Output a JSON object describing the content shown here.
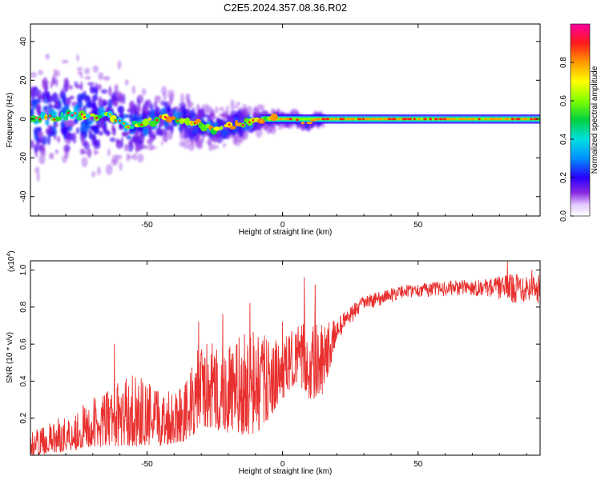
{
  "figure_title": "C2E5.2024.357.08.36.R02",
  "colors": {
    "snr_line": "#e8302e",
    "axis": "#000000"
  },
  "chart_data": [
    {
      "type": "heatmap",
      "xlabel": "Height of straight line (km)",
      "ylabel": "Frequency (Hz)",
      "xlim": [
        -93,
        95
      ],
      "ylim": [
        -50,
        49
      ],
      "xticks": [
        -50,
        0,
        50
      ],
      "yticks": [
        -40,
        -20,
        0,
        20,
        40
      ],
      "colorbar": {
        "label": "Normalized spectral amplitude",
        "range": [
          0,
          1
        ],
        "ticks": [
          "0.0",
          "0.2",
          "0.4",
          "0.6",
          "0.8"
        ]
      },
      "ridge": [
        {
          "x": -93,
          "y": 0
        },
        {
          "x": -85,
          "y": 1
        },
        {
          "x": -78,
          "y": 2
        },
        {
          "x": -72,
          "y": 1
        },
        {
          "x": -65,
          "y": 2
        },
        {
          "x": -60,
          "y": 0
        },
        {
          "x": -57,
          "y": -3
        },
        {
          "x": -54,
          "y": -3
        },
        {
          "x": -50,
          "y": -2
        },
        {
          "x": -46,
          "y": 0
        },
        {
          "x": -42,
          "y": 1
        },
        {
          "x": -38,
          "y": 0
        },
        {
          "x": -34,
          "y": -2
        },
        {
          "x": -30,
          "y": -3
        },
        {
          "x": -25,
          "y": -5
        },
        {
          "x": -22,
          "y": -5
        },
        {
          "x": -18,
          "y": -3
        },
        {
          "x": -14,
          "y": -2
        },
        {
          "x": -10,
          "y": -1
        },
        {
          "x": -6,
          "y": -1
        },
        {
          "x": -3,
          "y": 0
        },
        {
          "x": 0,
          "y": 0
        },
        {
          "x": 5,
          "y": 0
        },
        {
          "x": 7,
          "y": -2
        },
        {
          "x": 10,
          "y": -2
        },
        {
          "x": 12,
          "y": 0
        },
        {
          "x": 20,
          "y": 0
        },
        {
          "x": 40,
          "y": 0
        },
        {
          "x": 60,
          "y": 0
        },
        {
          "x": 80,
          "y": 0
        },
        {
          "x": 95,
          "y": 0
        }
      ],
      "spread_hz": [
        {
          "x": -93,
          "spread": 12
        },
        {
          "x": -70,
          "spread": 12
        },
        {
          "x": -55,
          "spread": 9
        },
        {
          "x": -45,
          "spread": 6
        },
        {
          "x": -30,
          "spread": 5
        },
        {
          "x": -15,
          "spread": 4
        },
        {
          "x": -8,
          "spread": 3
        },
        {
          "x": 0,
          "spread": 1.5
        },
        {
          "x": 95,
          "spread": 1.2
        }
      ]
    },
    {
      "type": "line",
      "xlabel": "Height of straight line (km)",
      "ylabel": "SNR (10 * v/v)",
      "y_multiplier": "(x10",
      "y_multiplier_exp": "4",
      "xlim": [
        -93,
        95
      ],
      "ylim": [
        0,
        1.05
      ],
      "xticks": [
        -50,
        0,
        50
      ],
      "yticks": [
        "0.2",
        "0.4",
        "0.6",
        "0.8",
        "1.0"
      ],
      "envelope": [
        {
          "x": -93,
          "lo": 0.0,
          "hi": 0.12
        },
        {
          "x": -80,
          "lo": 0.02,
          "hi": 0.22
        },
        {
          "x": -65,
          "lo": 0.05,
          "hi": 0.35
        },
        {
          "x": -55,
          "lo": 0.05,
          "hi": 0.45
        },
        {
          "x": -45,
          "lo": 0.05,
          "hi": 0.35
        },
        {
          "x": -35,
          "lo": 0.08,
          "hi": 0.42
        },
        {
          "x": -30,
          "lo": 0.15,
          "hi": 0.62
        },
        {
          "x": -20,
          "lo": 0.12,
          "hi": 0.6
        },
        {
          "x": -10,
          "lo": 0.1,
          "hi": 0.7
        },
        {
          "x": -5,
          "lo": 0.2,
          "hi": 0.62
        },
        {
          "x": 0,
          "lo": 0.3,
          "hi": 0.62
        },
        {
          "x": 5,
          "lo": 0.4,
          "hi": 0.7
        },
        {
          "x": 10,
          "lo": 0.3,
          "hi": 0.72
        },
        {
          "x": 15,
          "lo": 0.32,
          "hi": 0.7
        },
        {
          "x": 20,
          "lo": 0.62,
          "hi": 0.74
        },
        {
          "x": 30,
          "lo": 0.78,
          "hi": 0.86
        },
        {
          "x": 45,
          "lo": 0.85,
          "hi": 0.92
        },
        {
          "x": 60,
          "lo": 0.86,
          "hi": 0.94
        },
        {
          "x": 75,
          "lo": 0.86,
          "hi": 0.95
        },
        {
          "x": 85,
          "lo": 0.82,
          "hi": 0.98
        },
        {
          "x": 95,
          "lo": 0.82,
          "hi": 0.98
        }
      ],
      "peaks": [
        {
          "x": -62,
          "y": 0.6
        },
        {
          "x": -31,
          "y": 0.72
        },
        {
          "x": -22,
          "y": 0.76
        },
        {
          "x": -12,
          "y": 0.82
        },
        {
          "x": 0,
          "y": 0.72
        },
        {
          "x": 8,
          "y": 0.96
        },
        {
          "x": 12,
          "y": 0.92
        },
        {
          "x": 83,
          "y": 1.05
        },
        {
          "x": 92,
          "y": 1.0
        }
      ]
    }
  ]
}
